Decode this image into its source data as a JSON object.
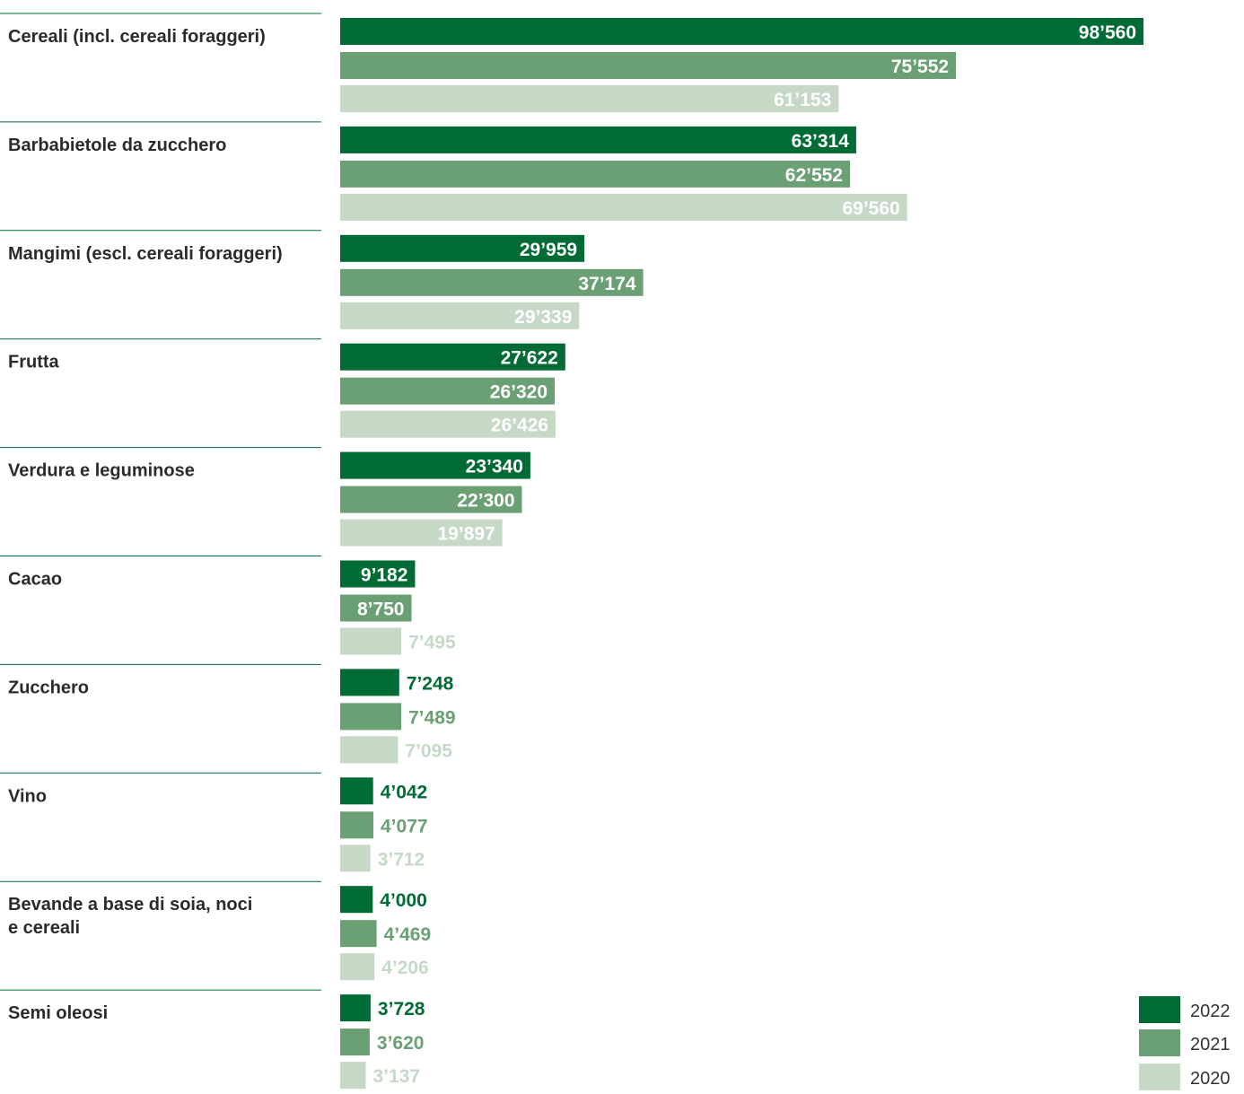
{
  "colors": {
    "2022": "#006b35",
    "2021": "#6aa074",
    "2020": "#c6d9c6",
    "separator": "#006b35",
    "category_text": "#2b2b2b",
    "legend_text": "#333333"
  },
  "chart_data": {
    "type": "bar",
    "orientation": "horizontal",
    "title": "",
    "xlabel": "",
    "ylabel": "",
    "xlim": [
      0,
      100000
    ],
    "grid": false,
    "legend_position": "bottom-right",
    "thousands_separator": "’",
    "categories": [
      [
        "Cereali (incl. cereali foraggeri)"
      ],
      [
        "Barbabietole da zucchero"
      ],
      [
        "Mangimi (escl. cereali foraggeri)"
      ],
      [
        "Frutta"
      ],
      [
        "Verdura e leguminose"
      ],
      [
        "Cacao"
      ],
      [
        "Zucchero"
      ],
      [
        "Vino"
      ],
      [
        "Bevande a base di soia, noci",
        "e cereali"
      ],
      [
        "Semi oleosi"
      ]
    ],
    "series": [
      {
        "name": "2022",
        "values": [
          98560,
          63314,
          29959,
          27622,
          23340,
          9182,
          7248,
          4042,
          4000,
          3728
        ],
        "labels": [
          "98’560",
          "63’314",
          "29’959",
          "27’622",
          "23’340",
          "9’182",
          "7’248",
          "4’042",
          "4’000",
          "3’728"
        ]
      },
      {
        "name": "2021",
        "values": [
          75552,
          62552,
          37174,
          26320,
          22300,
          8750,
          7489,
          4077,
          4469,
          3620
        ],
        "labels": [
          "75’552",
          "62’552",
          "37’174",
          "26’320",
          "22’300",
          "8’750",
          "7’489",
          "4’077",
          "4’469",
          "3’620"
        ]
      },
      {
        "name": "2020",
        "values": [
          61153,
          69560,
          29339,
          26426,
          19897,
          7495,
          7095,
          3712,
          4206,
          3137
        ],
        "labels": [
          "61’153",
          "69’560",
          "29’339",
          "26’426",
          "19’897",
          "7’495",
          "7’095",
          "3’712",
          "4’206",
          "3’137"
        ]
      }
    ]
  }
}
